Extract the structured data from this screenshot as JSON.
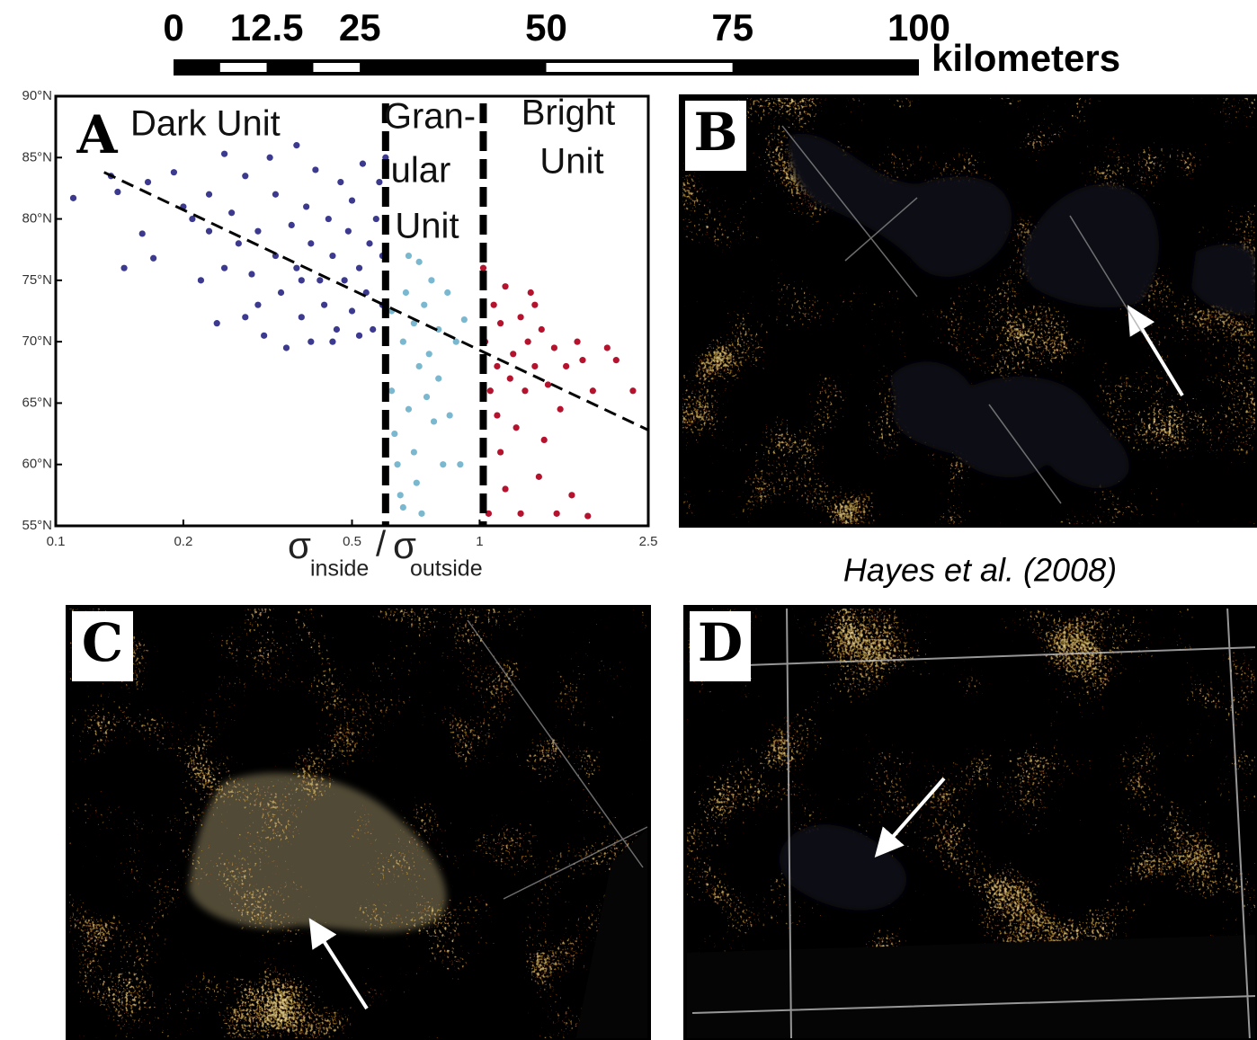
{
  "scale_bar": {
    "ticks": [
      0,
      12.5,
      25,
      50,
      75,
      100
    ],
    "segments": [
      0,
      6.25,
      12.5,
      18.75,
      25,
      50,
      75,
      100
    ],
    "range": [
      0,
      100
    ],
    "unit": "kilometers"
  },
  "chart_data": {
    "type": "scatter",
    "panel": "A",
    "xlabel": [
      "σ",
      "inside",
      "/",
      "σ",
      "outside"
    ],
    "xlim": [
      0.1,
      2.5
    ],
    "xticks": [
      0.1,
      0.2,
      0.5,
      1,
      2.5
    ],
    "xscale": "log",
    "ylim": [
      55,
      90
    ],
    "yticks": [
      {
        "value": 55,
        "label": "55°N"
      },
      {
        "value": 60,
        "label": "60°N"
      },
      {
        "value": 65,
        "label": "65°N"
      },
      {
        "value": 70,
        "label": "70°N"
      },
      {
        "value": 75,
        "label": "75°N"
      },
      {
        "value": 80,
        "label": "80°N"
      },
      {
        "value": 85,
        "label": "85°N"
      },
      {
        "value": 90,
        "label": "90°N"
      }
    ],
    "annotations": [
      "Dark Unit",
      "Gran-",
      "ular",
      "Unit",
      "Bright",
      "Unit"
    ],
    "boundaries": [
      0.6,
      1.02
    ],
    "trend_line": {
      "x": [
        0.13,
        2.5
      ],
      "y": [
        83.8,
        62.8
      ]
    },
    "series": [
      {
        "color": "#3b3a8f",
        "x": [
          0.11,
          0.135,
          0.14,
          0.145,
          0.16,
          0.165,
          0.17,
          0.19,
          0.2,
          0.21,
          0.22,
          0.23,
          0.23,
          0.24,
          0.25,
          0.25,
          0.26,
          0.27,
          0.28,
          0.29,
          0.3,
          0.3,
          0.31,
          0.32,
          0.33,
          0.33,
          0.34,
          0.35,
          0.36,
          0.37,
          0.37,
          0.38,
          0.39,
          0.4,
          0.4,
          0.41,
          0.42,
          0.43,
          0.44,
          0.45,
          0.46,
          0.47,
          0.48,
          0.49,
          0.5,
          0.5,
          0.52,
          0.53,
          0.54,
          0.55,
          0.56,
          0.57,
          0.58,
          0.59,
          0.59,
          0.6,
          0.45,
          0.38,
          0.28,
          0.52
        ],
        "y": [
          81.7,
          83.5,
          82.2,
          76,
          78.8,
          83,
          76.8,
          83.8,
          81,
          80,
          75,
          82,
          79,
          71.5,
          85.3,
          76,
          80.5,
          78,
          83.5,
          75.5,
          79,
          73,
          70.5,
          85,
          77,
          82,
          74,
          69.5,
          79.5,
          86,
          76,
          72,
          81,
          78,
          70,
          84,
          75,
          73,
          80,
          77,
          71,
          83,
          75,
          79,
          72.5,
          81.5,
          76,
          84.5,
          74,
          78,
          71,
          80,
          83,
          73,
          77,
          85,
          70,
          75,
          72,
          70.5
        ]
      },
      {
        "color": "#7ab8d0",
        "x": [
          0.62,
          0.62,
          0.63,
          0.64,
          0.65,
          0.66,
          0.67,
          0.68,
          0.68,
          0.7,
          0.7,
          0.72,
          0.72,
          0.73,
          0.74,
          0.75,
          0.76,
          0.77,
          0.78,
          0.8,
          0.8,
          0.82,
          0.84,
          0.85,
          0.88,
          0.9,
          0.92,
          0.66,
          0.71
        ],
        "y": [
          72.5,
          66,
          62.5,
          60,
          57.5,
          70,
          74,
          77,
          64.5,
          71.5,
          61,
          76.5,
          68,
          56,
          73,
          65.5,
          69,
          75,
          63.5,
          71,
          67,
          60,
          74,
          64,
          70,
          60,
          71.8,
          56.5,
          58.5
        ]
      },
      {
        "color": "#b5122e",
        "x": [
          1.02,
          1.03,
          1.05,
          1.06,
          1.08,
          1.1,
          1.12,
          1.12,
          1.15,
          1.15,
          1.18,
          1.2,
          1.22,
          1.25,
          1.25,
          1.28,
          1.3,
          1.32,
          1.35,
          1.38,
          1.4,
          1.45,
          1.5,
          1.52,
          1.55,
          1.6,
          1.65,
          1.7,
          1.75,
          1.8,
          1.85,
          2.0,
          2.1,
          2.3,
          1.42,
          1.1,
          1.35
        ],
        "y": [
          76,
          70,
          56,
          66,
          73,
          68,
          61,
          71.5,
          58,
          74.5,
          67,
          69,
          63,
          72,
          56,
          66,
          70,
          74,
          68,
          59,
          71,
          66.5,
          69.5,
          56,
          64.5,
          68,
          57.5,
          70,
          68.5,
          55.8,
          66,
          69.5,
          68.5,
          66,
          62,
          64,
          73
        ]
      }
    ]
  },
  "panels": {
    "b": "B",
    "c": "C",
    "d": "D"
  },
  "citation": "Hayes et al. (2008)"
}
